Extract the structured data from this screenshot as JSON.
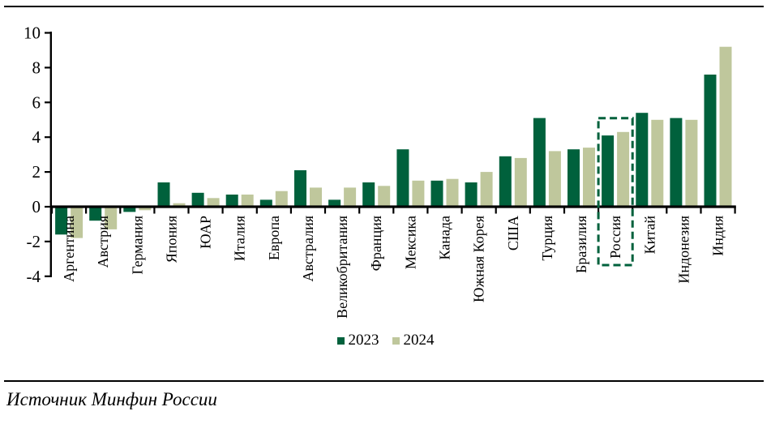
{
  "source_note": "Источник Минфин России",
  "chart_data": {
    "type": "bar",
    "categories": [
      "Аргентина",
      "Австрия",
      "Германия",
      "Япония",
      "ЮАР",
      "Италия",
      "Европа",
      "Австралия",
      "Великобритания",
      "Франция",
      "Мексика",
      "Канада",
      "Южная Корея",
      "США",
      "Турция",
      "Бразилия",
      "Россия",
      "Китай",
      "Индонезия",
      "Индия"
    ],
    "series": [
      {
        "name": "2023",
        "color": "#00613c",
        "values": [
          -1.6,
          -0.8,
          -0.3,
          1.4,
          0.8,
          0.7,
          0.4,
          2.1,
          0.4,
          1.4,
          3.3,
          1.5,
          1.4,
          2.9,
          5.1,
          3.3,
          4.1,
          5.4,
          5.1,
          7.6
        ]
      },
      {
        "name": "2024",
        "color": "#bfc79c",
        "values": [
          -1.8,
          -1.3,
          -0.2,
          0.2,
          0.5,
          0.7,
          0.9,
          1.1,
          1.1,
          1.2,
          1.5,
          1.6,
          2.0,
          2.8,
          3.2,
          3.4,
          4.3,
          5.0,
          5.0,
          9.2
        ]
      }
    ],
    "title": "",
    "xlabel": "",
    "ylabel": "",
    "ylim": [
      -4,
      10
    ],
    "yticks": [
      10,
      8,
      6,
      4,
      2,
      0,
      -2,
      -4
    ],
    "grid": false,
    "legend_position": "bottom-center",
    "axis_color": "#000000",
    "highlight_category": "Россия",
    "highlight_color": "#00613c"
  }
}
